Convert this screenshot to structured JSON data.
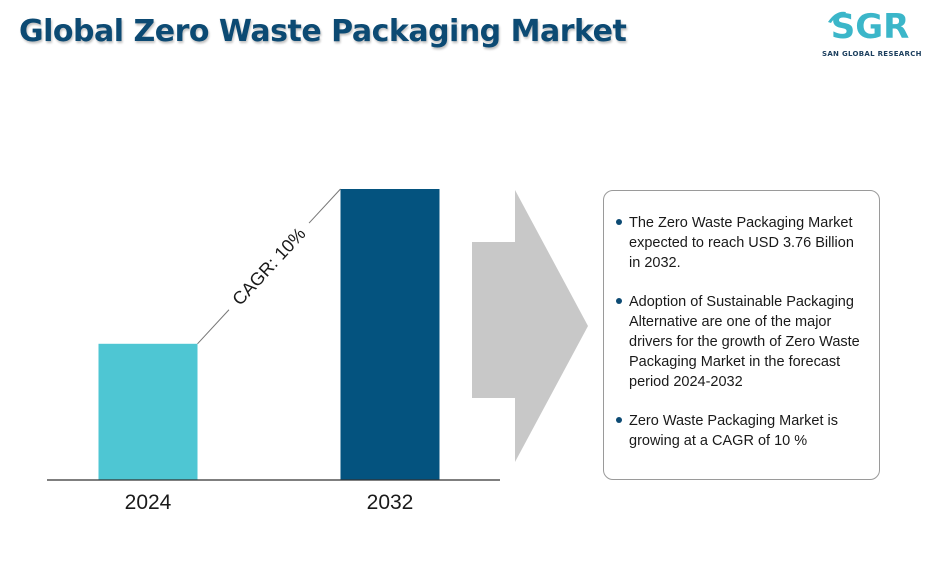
{
  "header": {
    "title": "Global Zero Waste Packaging Market",
    "logo_text": "SGR",
    "logo_subtitle": "SAN GLOBAL RESEARCH"
  },
  "chart_data": {
    "type": "bar",
    "title": "",
    "xlabel": "",
    "ylabel": "",
    "categories": [
      "2024",
      "2032"
    ],
    "series": [
      {
        "values": [
          1.76,
          3.76
        ]
      }
    ],
    "colors": [
      "#4ec6d3",
      "#04537f"
    ],
    "annotation": "CAGR: 10%",
    "ylim": [
      0,
      3.76
    ],
    "grid": false,
    "legend": "none"
  },
  "info": {
    "items": [
      "The Zero Waste Packaging Market expected to reach USD 3.76 Billion in 2032.",
      "Adoption of Sustainable Packaging Alternative are one of the major drivers for the growth of Zero Waste Packaging Market in the forecast period 2024-2032",
      "Zero Waste Packaging Market is growing at a CAGR of 10 %"
    ]
  },
  "colors": {
    "title": "#0c4a73",
    "arrow": "#c8c8c8",
    "logo_teal": "#3bb6c9",
    "logo_navy": "#1c3f5e"
  }
}
